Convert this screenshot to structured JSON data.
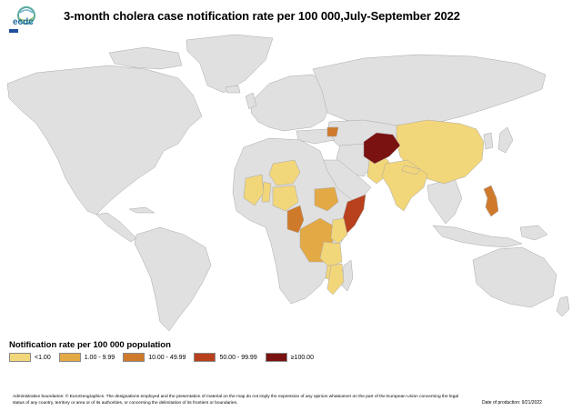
{
  "title": "3-month cholera case notification rate per 100 000,July-September 2022",
  "logo": {
    "text": "ecdc"
  },
  "legend": {
    "title": "Notification rate per 100 000 population",
    "items": [
      {
        "label": "<1.00",
        "color": "#f2d67a"
      },
      {
        "label": "1.00 - 9.99",
        "color": "#e3a945"
      },
      {
        "label": "10.00 - 49.99",
        "color": "#cf7a2b"
      },
      {
        "label": "50.00 - 99.99",
        "color": "#b8401d"
      },
      {
        "label": "≥100.00",
        "color": "#7a1212"
      }
    ]
  },
  "colors": {
    "no_data": "#e0e0e0",
    "border": "#a8a8a8",
    "ocean": "#ffffff"
  },
  "map_data": {
    "country_categories": {
      "Afghanistan": "≥100.00",
      "Somalia": "50.00 - 99.99",
      "Syria": "10.00 - 49.99",
      "Pakistan": "<1.00",
      "India": "<1.00",
      "China": "<1.00",
      "Nepal": "<1.00",
      "Philippines": "10.00 - 49.99",
      "Cameroon": "10.00 - 49.99",
      "DR Congo": "1.00 - 9.99",
      "South Sudan": "1.00 - 9.99",
      "Nigeria": "<1.00",
      "Niger": "<1.00",
      "Benin": "<1.00",
      "Kenya": "<1.00",
      "Tanzania": "<1.00",
      "Malawi": "<1.00",
      "Mozambique": "<1.00"
    }
  },
  "footer": {
    "disclaimer": "Administrative boundaries: © EuroGeographics. The designations employed and the presentation of material on the map do not imply the expression of any opinion whatsoever on the part of the European Union concerning the legal status of any country, territory or area or of its authorities, or concerning the delimitation of its frontiers or boundaries.",
    "date": "Date of production: 9/21/2022"
  }
}
